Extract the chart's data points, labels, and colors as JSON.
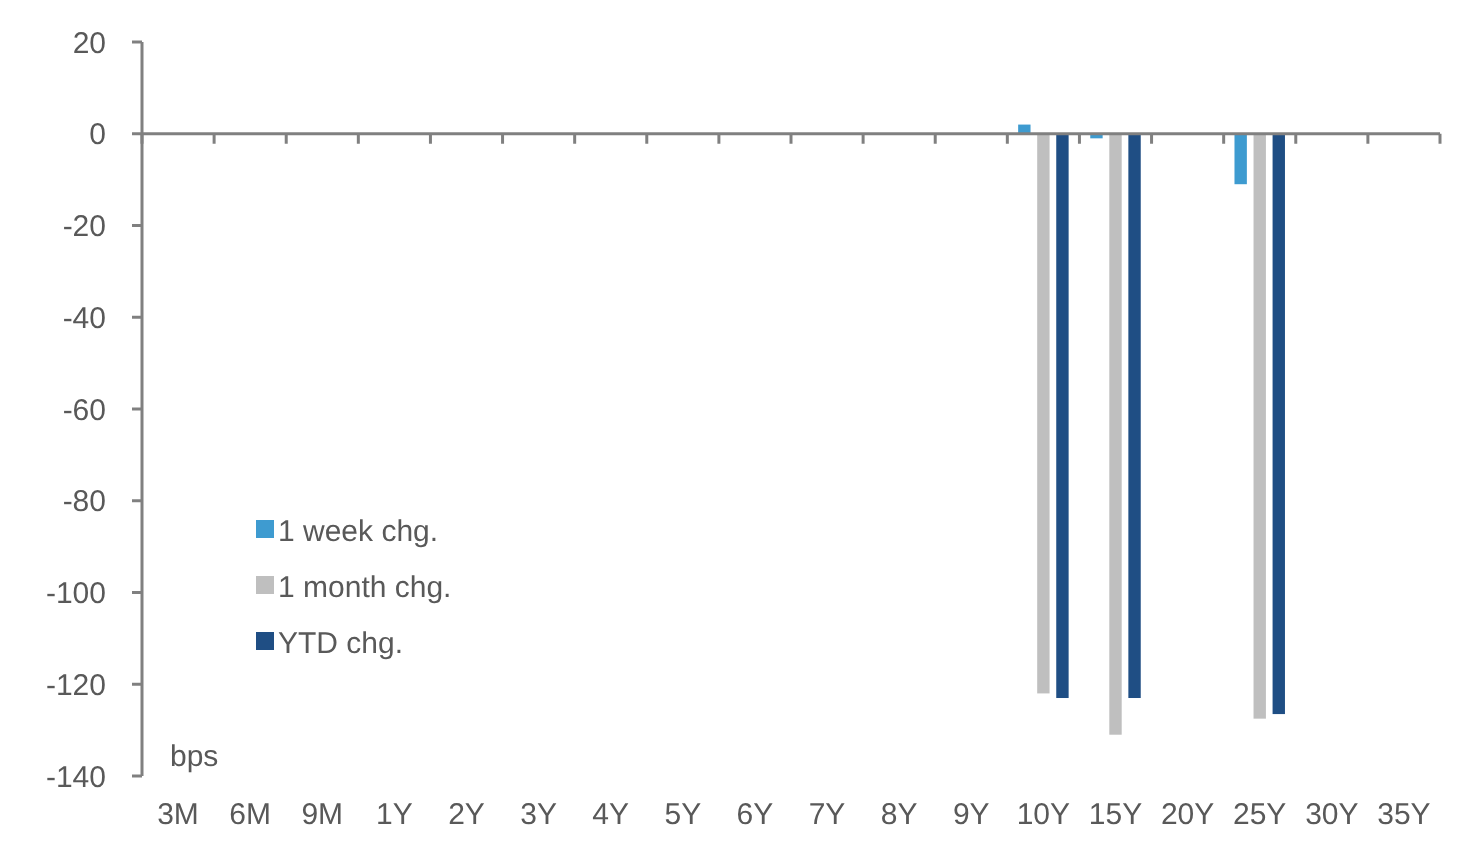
{
  "chart_data": {
    "type": "bar",
    "ylabel": "bps",
    "categories": [
      "3M",
      "6M",
      "9M",
      "1Y",
      "2Y",
      "3Y",
      "4Y",
      "5Y",
      "6Y",
      "7Y",
      "8Y",
      "9Y",
      "10Y",
      "15Y",
      "20Y",
      "25Y",
      "30Y",
      "35Y"
    ],
    "series": [
      {
        "name": "1 week chg.",
        "color": "#3e9bd0",
        "values": [
          null,
          null,
          null,
          null,
          null,
          null,
          null,
          null,
          null,
          null,
          null,
          null,
          2,
          -1,
          null,
          -11,
          null,
          null
        ]
      },
      {
        "name": "1 month chg.",
        "color": "#bfbfbf",
        "values": [
          null,
          null,
          null,
          null,
          null,
          null,
          null,
          null,
          null,
          null,
          null,
          null,
          -122,
          -131,
          null,
          -127.5,
          null,
          null
        ]
      },
      {
        "name": "YTD chg.",
        "color": "#1f4e84",
        "values": [
          null,
          null,
          null,
          null,
          null,
          null,
          null,
          null,
          null,
          null,
          null,
          null,
          -123,
          -123,
          null,
          -126.5,
          null,
          null
        ]
      }
    ],
    "ylim": [
      -140,
      20
    ],
    "yticks": [
      20,
      0,
      -20,
      -40,
      -60,
      -80,
      -100,
      -120,
      -140
    ],
    "legend": "bottom left"
  }
}
